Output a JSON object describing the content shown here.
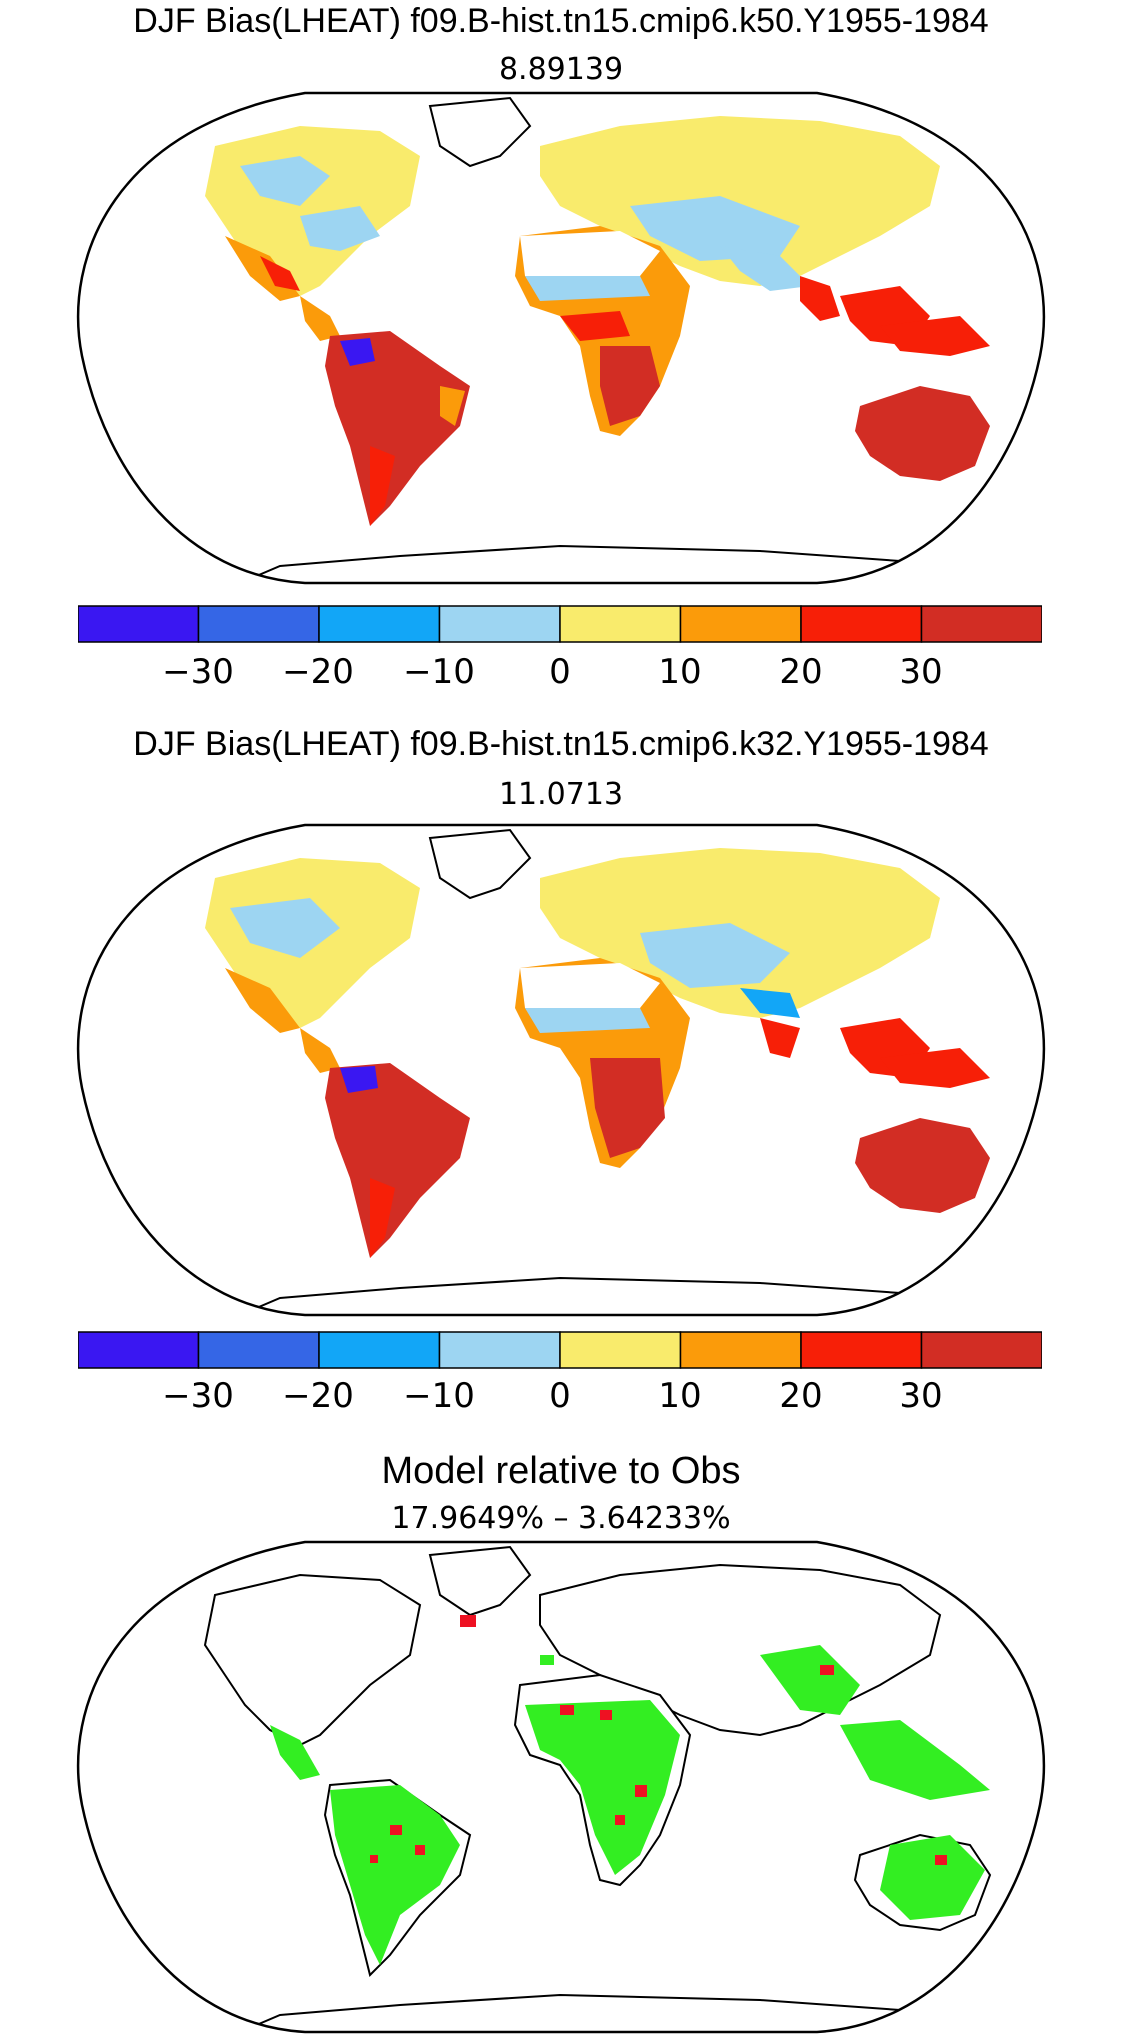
{
  "panels": [
    {
      "title": "DJF Bias(LHEAT) f09.B-hist.tn15.cmip6.k50.Y1955-1984",
      "subtitle": "8.89139",
      "colorbar": {
        "colors": [
          "#3a17f2",
          "#3566e6",
          "#12a6f7",
          "#9dd5f2",
          "#f9eb6c",
          "#fb9b0a",
          "#f71f07",
          "#d22d24"
        ],
        "tick_labels": [
          "−30",
          "−20",
          "−10",
          "0",
          "10",
          "20",
          "30"
        ]
      }
    },
    {
      "title": "DJF Bias(LHEAT) f09.B-hist.tn15.cmip6.k32.Y1955-1984",
      "subtitle": "11.0713",
      "colorbar": {
        "colors": [
          "#3a17f2",
          "#3566e6",
          "#12a6f7",
          "#9dd5f2",
          "#f9eb6c",
          "#fb9b0a",
          "#f71f07",
          "#d22d24"
        ],
        "tick_labels": [
          "−30",
          "−20",
          "−10",
          "0",
          "10",
          "20",
          "30"
        ]
      }
    },
    {
      "title": "Model relative to Obs",
      "subtitle": "17.9649% – 3.64233%"
    }
  ],
  "map_fill_colors": {
    "white": "#ffffff",
    "yellow": "#f9eb6c",
    "light_blue": "#9dd5f2",
    "blue": "#12a6f7",
    "dark_blue": "#3a17f2",
    "orange": "#fb9b0a",
    "red": "#f71f07",
    "dark_red": "#d22d24",
    "green": "#33ee22",
    "relative_red": "#ee1122"
  }
}
